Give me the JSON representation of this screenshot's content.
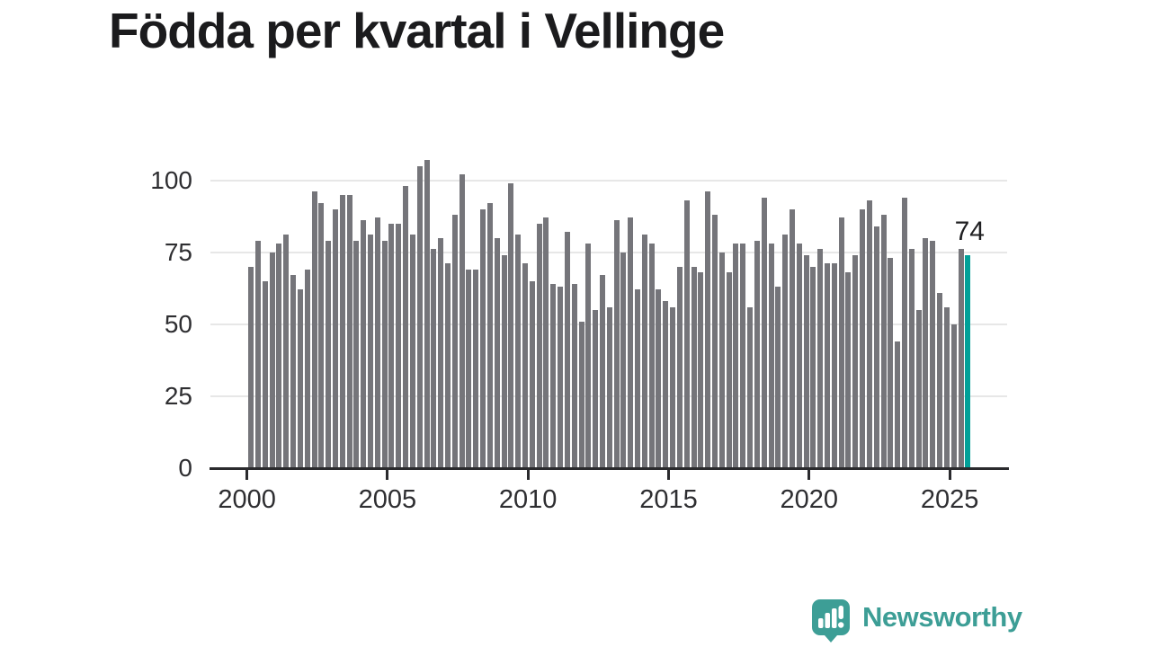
{
  "page": {
    "background": "#ffffff"
  },
  "chart_data": {
    "type": "bar",
    "title": "Födda per kvartal i Vellinge",
    "start_quarter": "2000 Q1",
    "end_quarter": "2025 Q3",
    "x_tick_labels": [
      "2000",
      "2005",
      "2010",
      "2015",
      "2020",
      "2025"
    ],
    "y_ticks": [
      0,
      25,
      50,
      75,
      100
    ],
    "ylim": [
      0,
      110
    ],
    "grid": "horizontal",
    "legend_position": "none",
    "bar_color": "#75757a",
    "grid_color": "#e7e7e7",
    "axis_color": "#2a2a2d",
    "tick_label_color": "#2e2e31",
    "values": [
      70,
      79,
      65,
      75,
      78,
      81,
      67,
      62,
      69,
      96,
      92,
      79,
      90,
      95,
      95,
      79,
      86,
      81,
      87,
      79,
      85,
      85,
      98,
      81,
      105,
      107,
      76,
      80,
      71,
      88,
      102,
      69,
      69,
      90,
      92,
      80,
      74,
      99,
      81,
      71,
      65,
      85,
      87,
      64,
      63,
      82,
      64,
      51,
      78,
      55,
      67,
      56,
      86,
      75,
      87,
      62,
      81,
      78,
      62,
      58,
      56,
      70,
      93,
      70,
      68,
      96,
      88,
      75,
      68,
      78,
      78,
      56,
      79,
      94,
      78,
      63,
      81,
      90,
      78,
      74,
      70,
      76,
      71,
      71,
      87,
      68,
      74,
      90,
      93,
      84,
      88,
      73,
      44,
      94,
      76,
      55,
      80,
      79,
      61,
      56,
      50,
      76,
      74
    ],
    "highlight": {
      "position": "last",
      "value": 74,
      "label": "74",
      "color": "#00a098"
    }
  },
  "branding": {
    "logo_text": "Newsworthy",
    "logo_color": "#3d9e96",
    "logo_icon": "newsworthy-speech-bubble-bar-chart-icon"
  }
}
